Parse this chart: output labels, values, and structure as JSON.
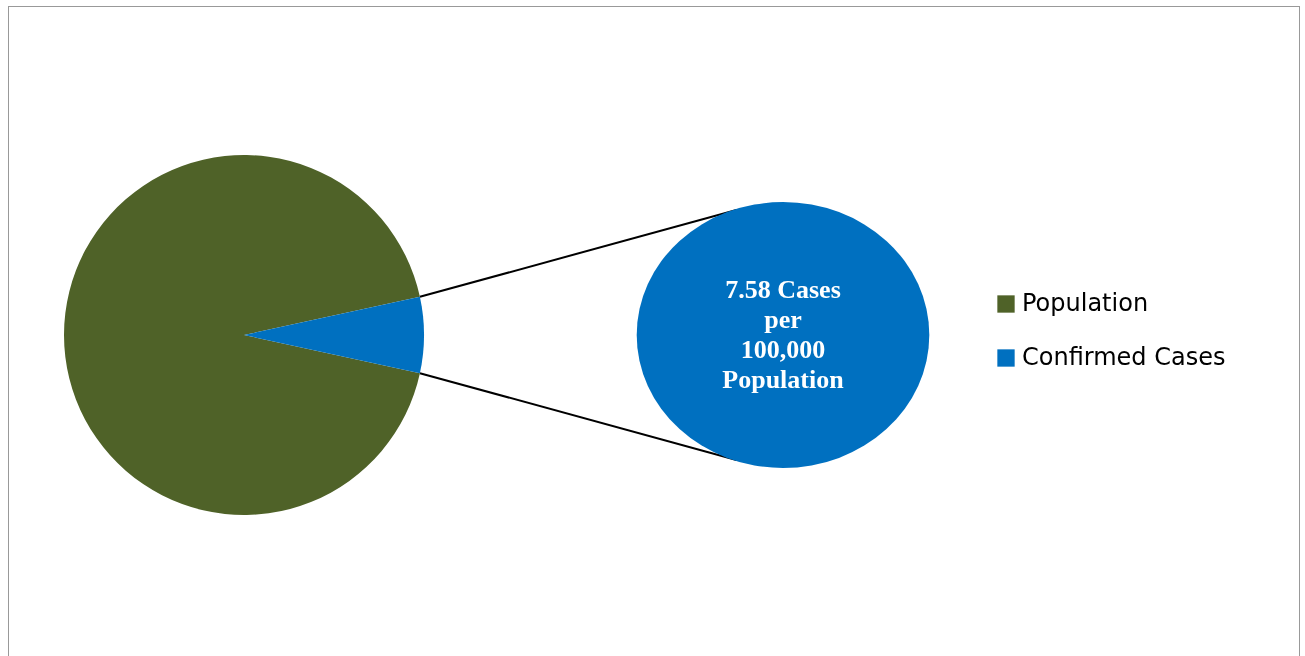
{
  "chart_data": {
    "type": "pie",
    "categories": [
      "Population",
      "Confirmed Cases"
    ],
    "values": [
      93.2,
      6.8
    ],
    "colors": [
      "#4f6228",
      "#0070c0"
    ],
    "annotations": [
      "7.58 Cases per 100,000 Population"
    ],
    "legend": "right"
  }
}
